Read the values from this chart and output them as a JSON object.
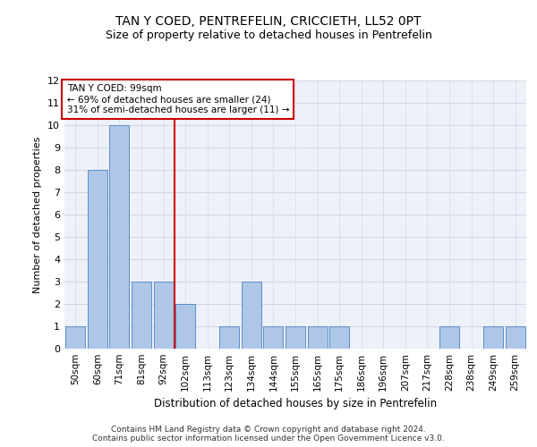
{
  "title": "TAN Y COED, PENTREFELIN, CRICCIETH, LL52 0PT",
  "subtitle": "Size of property relative to detached houses in Pentrefelin",
  "xlabel": "Distribution of detached houses by size in Pentrefelin",
  "ylabel": "Number of detached properties",
  "categories": [
    "50sqm",
    "60sqm",
    "71sqm",
    "81sqm",
    "92sqm",
    "102sqm",
    "113sqm",
    "123sqm",
    "134sqm",
    "144sqm",
    "155sqm",
    "165sqm",
    "175sqm",
    "186sqm",
    "196sqm",
    "207sqm",
    "217sqm",
    "228sqm",
    "238sqm",
    "249sqm",
    "259sqm"
  ],
  "values": [
    1,
    8,
    10,
    3,
    3,
    2,
    0,
    1,
    3,
    1,
    1,
    1,
    1,
    0,
    0,
    0,
    0,
    1,
    0,
    1,
    1
  ],
  "bar_color": "#aec6e8",
  "bar_edge_color": "#5b8ec4",
  "red_line_x": 4.5,
  "annotation_line1": "TAN Y COED: 99sqm",
  "annotation_line2": "← 69% of detached houses are smaller (24)",
  "annotation_line3": "31% of semi-detached houses are larger (11) →",
  "annotation_box_color": "#ffffff",
  "annotation_box_edge_color": "#cc0000",
  "red_line_color": "#cc0000",
  "ylim": [
    0,
    12
  ],
  "yticks": [
    0,
    1,
    2,
    3,
    4,
    5,
    6,
    7,
    8,
    9,
    10,
    11,
    12
  ],
  "grid_color": "#d0d8e8",
  "background_color": "#eef2f8",
  "footer_line1": "Contains HM Land Registry data © Crown copyright and database right 2024.",
  "footer_line2": "Contains public sector information licensed under the Open Government Licence v3.0.",
  "title_fontsize": 10,
  "subtitle_fontsize": 9,
  "xlabel_fontsize": 8.5,
  "ylabel_fontsize": 8,
  "tick_fontsize": 7.5,
  "footer_fontsize": 6.5,
  "annot_fontsize": 7.5
}
